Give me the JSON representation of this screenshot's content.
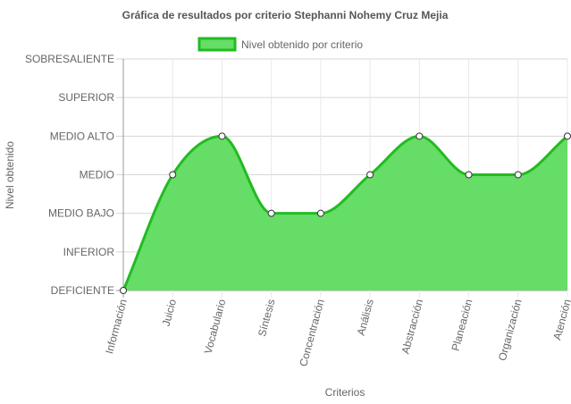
{
  "chart_data": {
    "type": "area",
    "title": "Gráfica de resultados por criterio Stephanni Nohemy Cruz Mejia",
    "xlabel": "Criterios",
    "ylabel": "Nivel obtenido",
    "categories": [
      "Información",
      "Juicio",
      "Vocabulario",
      "Síntesis",
      "Concentración",
      "Análisis",
      "Abstracción",
      "Planeación",
      "Organización",
      "Atención"
    ],
    "y_levels": [
      "DEFICIENTE",
      "INFERIOR",
      "MEDIO BAJO",
      "MEDIO",
      "MEDIO ALTO",
      "SUPERIOR",
      "SOBRESALIENTE"
    ],
    "series": [
      {
        "name": "Nivel obtenido por criterio",
        "values": [
          0,
          3,
          4,
          2,
          2,
          3,
          4,
          3,
          3,
          4
        ],
        "fill_color": "#66dd66",
        "line_color": "#22bb22"
      }
    ],
    "ylim": [
      0,
      6
    ],
    "grid": true,
    "legend": "top-center"
  }
}
